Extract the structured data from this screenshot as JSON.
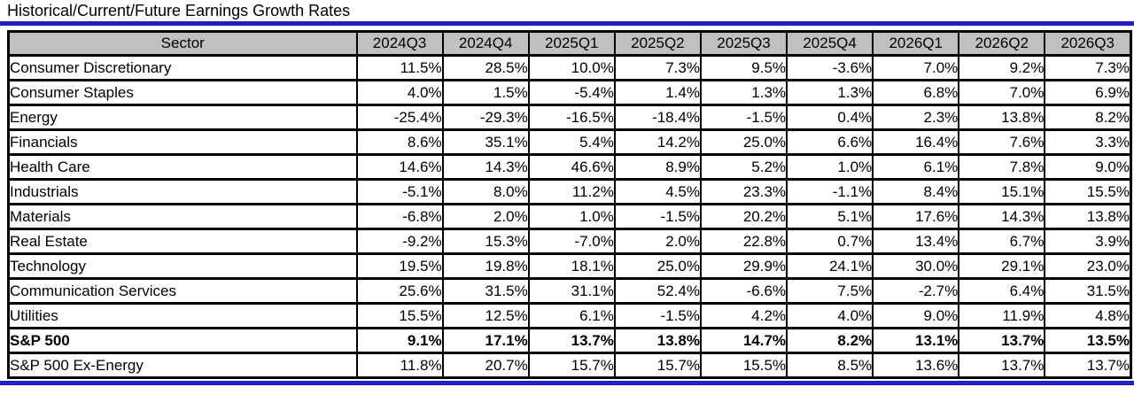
{
  "title": "Historical/Current/Future Earnings Growth Rates",
  "colors": {
    "accent_blue": "#2222CC",
    "header_bg": "#C0C0C0",
    "border_black": "#000000"
  },
  "table": {
    "columns": [
      "Sector",
      "2024Q3",
      "2024Q4",
      "2025Q1",
      "2025Q2",
      "2025Q3",
      "2025Q4",
      "2026Q1",
      "2026Q2",
      "2026Q3"
    ],
    "rows": [
      {
        "sector": "Consumer Discretionary",
        "bold": false,
        "values": [
          "11.5%",
          "28.5%",
          "10.0%",
          "7.3%",
          "9.5%",
          "-3.6%",
          "7.0%",
          "9.2%",
          "7.3%"
        ]
      },
      {
        "sector": "Consumer Staples",
        "bold": false,
        "values": [
          "4.0%",
          "1.5%",
          "-5.4%",
          "1.4%",
          "1.3%",
          "1.3%",
          "6.8%",
          "7.0%",
          "6.9%"
        ]
      },
      {
        "sector": "Energy",
        "bold": false,
        "values": [
          "-25.4%",
          "-29.3%",
          "-16.5%",
          "-18.4%",
          "-1.5%",
          "0.4%",
          "2.3%",
          "13.8%",
          "8.2%"
        ]
      },
      {
        "sector": "Financials",
        "bold": false,
        "values": [
          "8.6%",
          "35.1%",
          "5.4%",
          "14.2%",
          "25.0%",
          "6.6%",
          "16.4%",
          "7.6%",
          "3.3%"
        ]
      },
      {
        "sector": "Health Care",
        "bold": false,
        "values": [
          "14.6%",
          "14.3%",
          "46.6%",
          "8.9%",
          "5.2%",
          "1.0%",
          "6.1%",
          "7.8%",
          "9.0%"
        ]
      },
      {
        "sector": "Industrials",
        "bold": false,
        "values": [
          "-5.1%",
          "8.0%",
          "11.2%",
          "4.5%",
          "23.3%",
          "-1.1%",
          "8.4%",
          "15.1%",
          "15.5%"
        ]
      },
      {
        "sector": "Materials",
        "bold": false,
        "values": [
          "-6.8%",
          "2.0%",
          "1.0%",
          "-1.5%",
          "20.2%",
          "5.1%",
          "17.6%",
          "14.3%",
          "13.8%"
        ]
      },
      {
        "sector": "Real Estate",
        "bold": false,
        "values": [
          "-9.2%",
          "15.3%",
          "-7.0%",
          "2.0%",
          "22.8%",
          "0.7%",
          "13.4%",
          "6.7%",
          "3.9%"
        ]
      },
      {
        "sector": "Technology",
        "bold": false,
        "values": [
          "19.5%",
          "19.8%",
          "18.1%",
          "25.0%",
          "29.9%",
          "24.1%",
          "30.0%",
          "29.1%",
          "23.0%"
        ]
      },
      {
        "sector": "Communication Services",
        "bold": false,
        "values": [
          "25.6%",
          "31.5%",
          "31.1%",
          "52.4%",
          "-6.6%",
          "7.5%",
          "-2.7%",
          "6.4%",
          "31.5%"
        ]
      },
      {
        "sector": "Utilities",
        "bold": false,
        "values": [
          "15.5%",
          "12.5%",
          "6.1%",
          "-1.5%",
          "4.2%",
          "4.0%",
          "9.0%",
          "11.9%",
          "4.8%"
        ]
      },
      {
        "sector": "S&P 500",
        "bold": true,
        "values": [
          "9.1%",
          "17.1%",
          "13.7%",
          "13.8%",
          "14.7%",
          "8.2%",
          "13.1%",
          "13.7%",
          "13.5%"
        ]
      },
      {
        "sector": "S&P 500 Ex-Energy",
        "bold": false,
        "values": [
          "11.8%",
          "20.7%",
          "15.7%",
          "15.7%",
          "15.5%",
          "8.5%",
          "13.6%",
          "13.7%",
          "13.7%"
        ]
      }
    ]
  },
  "chart_data": {
    "type": "table",
    "title": "Historical/Current/Future Earnings Growth Rates",
    "categories": [
      "2024Q3",
      "2024Q4",
      "2025Q1",
      "2025Q2",
      "2025Q3",
      "2025Q4",
      "2026Q1",
      "2026Q2",
      "2026Q3"
    ],
    "unit": "%",
    "series": [
      {
        "name": "Consumer Discretionary",
        "values": [
          11.5,
          28.5,
          10.0,
          7.3,
          9.5,
          -3.6,
          7.0,
          9.2,
          7.3
        ]
      },
      {
        "name": "Consumer Staples",
        "values": [
          4.0,
          1.5,
          -5.4,
          1.4,
          1.3,
          1.3,
          6.8,
          7.0,
          6.9
        ]
      },
      {
        "name": "Energy",
        "values": [
          -25.4,
          -29.3,
          -16.5,
          -18.4,
          -1.5,
          0.4,
          2.3,
          13.8,
          8.2
        ]
      },
      {
        "name": "Financials",
        "values": [
          8.6,
          35.1,
          5.4,
          14.2,
          25.0,
          6.6,
          16.4,
          7.6,
          3.3
        ]
      },
      {
        "name": "Health Care",
        "values": [
          14.6,
          14.3,
          46.6,
          8.9,
          5.2,
          1.0,
          6.1,
          7.8,
          9.0
        ]
      },
      {
        "name": "Industrials",
        "values": [
          -5.1,
          8.0,
          11.2,
          4.5,
          23.3,
          -1.1,
          8.4,
          15.1,
          15.5
        ]
      },
      {
        "name": "Materials",
        "values": [
          -6.8,
          2.0,
          1.0,
          -1.5,
          20.2,
          5.1,
          17.6,
          14.3,
          13.8
        ]
      },
      {
        "name": "Real Estate",
        "values": [
          -9.2,
          15.3,
          -7.0,
          2.0,
          22.8,
          0.7,
          13.4,
          6.7,
          3.9
        ]
      },
      {
        "name": "Technology",
        "values": [
          19.5,
          19.8,
          18.1,
          25.0,
          29.9,
          24.1,
          30.0,
          29.1,
          23.0
        ]
      },
      {
        "name": "Communication Services",
        "values": [
          25.6,
          31.5,
          31.1,
          52.4,
          -6.6,
          7.5,
          -2.7,
          6.4,
          31.5
        ]
      },
      {
        "name": "Utilities",
        "values": [
          15.5,
          12.5,
          6.1,
          -1.5,
          4.2,
          4.0,
          9.0,
          11.9,
          4.8
        ]
      },
      {
        "name": "S&P 500",
        "values": [
          9.1,
          17.1,
          13.7,
          13.8,
          14.7,
          8.2,
          13.1,
          13.7,
          13.5
        ]
      },
      {
        "name": "S&P 500 Ex-Energy",
        "values": [
          11.8,
          20.7,
          15.7,
          15.7,
          15.5,
          8.5,
          13.6,
          13.7,
          13.7
        ]
      }
    ]
  }
}
